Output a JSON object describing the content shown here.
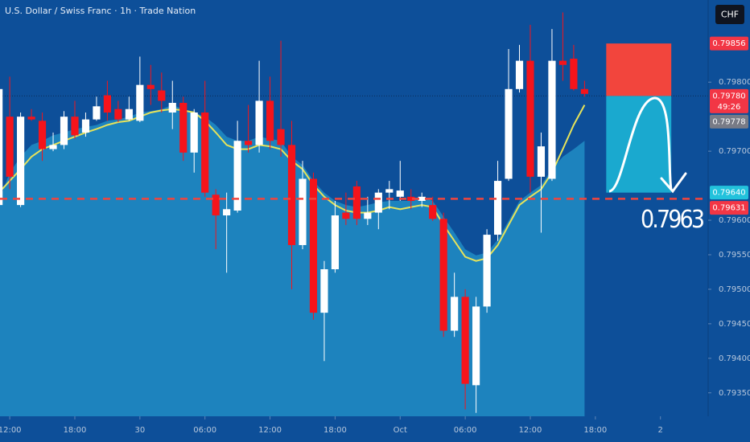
{
  "chart_data": {
    "type": "candlestick",
    "title": "U.S. Dollar / Swiss Franc · 1h · Trade Nation",
    "currency_button": "CHF",
    "x": [
      -1,
      0,
      1,
      2,
      3,
      4,
      5,
      6,
      7,
      8,
      9,
      10,
      11,
      12,
      13,
      14,
      15,
      16,
      17,
      18,
      19,
      20,
      21,
      22,
      23,
      24,
      25,
      26,
      27,
      28,
      29,
      30,
      31,
      32,
      33,
      34,
      35,
      36,
      37,
      38,
      39,
      40,
      41,
      42,
      43,
      44,
      45,
      46,
      47,
      48,
      49,
      50,
      51,
      52,
      53
    ],
    "open": [
      0.79622,
      0.7975,
      0.79622,
      0.7975,
      0.79744,
      0.79703,
      0.79709,
      0.7975,
      0.79727,
      0.79746,
      0.79781,
      0.79761,
      0.79746,
      0.79744,
      0.79796,
      0.79788,
      0.79756,
      0.7977,
      0.79698,
      0.79756,
      0.79637,
      0.79607,
      0.79614,
      0.79715,
      0.79709,
      0.79773,
      0.79732,
      0.79709,
      0.79564,
      0.7966,
      0.79466,
      0.79529,
      0.79611,
      0.79649,
      0.79602,
      0.79611,
      0.7964,
      0.79634,
      0.79634,
      0.79628,
      0.79622,
      0.79602,
      0.7944,
      0.79489,
      0.79361,
      0.79475,
      0.79579,
      0.7966,
      0.7979,
      0.79831,
      0.79663,
      0.7966,
      0.79831,
      0.79834,
      0.7979
    ],
    "high": [
      0.79808,
      0.79808,
      0.79756,
      0.79761,
      0.79756,
      0.79727,
      0.79758,
      0.79773,
      0.79756,
      0.79779,
      0.79802,
      0.79773,
      0.79779,
      0.79837,
      0.79825,
      0.79814,
      0.79802,
      0.79779,
      0.79761,
      0.79802,
      0.79645,
      0.7964,
      0.79744,
      0.79767,
      0.79831,
      0.79808,
      0.7986,
      0.79744,
      0.79686,
      0.79669,
      0.79541,
      0.79628,
      0.7964,
      0.79657,
      0.79634,
      0.79645,
      0.79657,
      0.79686,
      0.79645,
      0.7964,
      0.79634,
      0.79611,
      0.79524,
      0.795,
      0.79489,
      0.79587,
      0.79686,
      0.79848,
      0.79854,
      0.79883,
      0.79727,
      0.79877,
      0.79901,
      0.79854,
      0.79802
    ],
    "low": [
      0.79616,
      0.79645,
      0.79619,
      0.79744,
      0.79686,
      0.797,
      0.79703,
      0.79718,
      0.79721,
      0.79744,
      0.79744,
      0.79742,
      0.79744,
      0.79742,
      0.79767,
      0.79756,
      0.79732,
      0.79686,
      0.79669,
      0.79634,
      0.79558,
      0.79524,
      0.79611,
      0.79698,
      0.79698,
      0.79703,
      0.79692,
      0.795,
      0.79558,
      0.79456,
      0.79396,
      0.79524,
      0.79593,
      0.79593,
      0.79593,
      0.79587,
      0.79616,
      0.79628,
      0.79616,
      0.79619,
      0.79599,
      0.79431,
      0.79431,
      0.79326,
      0.79321,
      0.79466,
      0.7957,
      0.79657,
      0.79785,
      0.7964,
      0.79582,
      0.79657,
      0.79802,
      0.79788,
      0.79779
    ],
    "close": [
      0.7979,
      0.79663,
      0.7975,
      0.79746,
      0.79703,
      0.79709,
      0.7975,
      0.79723,
      0.79746,
      0.79765,
      0.79756,
      0.79746,
      0.79761,
      0.79796,
      0.7979,
      0.79773,
      0.7977,
      0.79698,
      0.79756,
      0.7964,
      0.79607,
      0.79616,
      0.79715,
      0.79709,
      0.79773,
      0.79715,
      0.79709,
      0.79564,
      0.7966,
      0.79466,
      0.79529,
      0.79607,
      0.79602,
      0.79602,
      0.79611,
      0.7964,
      0.79645,
      0.79643,
      0.79628,
      0.79634,
      0.79602,
      0.7944,
      0.79489,
      0.79363,
      0.79475,
      0.79579,
      0.79657,
      0.7979,
      0.79831,
      0.79663,
      0.79707,
      0.79831,
      0.79825,
      0.7979,
      0.79783
    ],
    "moving_average": {
      "color": "#e6e35a",
      "values": [
        0.7964,
        0.79657,
        0.79674,
        0.79692,
        0.79703,
        0.79709,
        0.79715,
        0.79721,
        0.79727,
        0.79732,
        0.79738,
        0.79742,
        0.79744,
        0.7975,
        0.79756,
        0.79759,
        0.79761,
        0.79759,
        0.79756,
        0.79744,
        0.79727,
        0.79709,
        0.79703,
        0.79703,
        0.79709,
        0.79707,
        0.79703,
        0.79686,
        0.79674,
        0.79651,
        0.79634,
        0.79622,
        0.79614,
        0.79611,
        0.79611,
        0.79614,
        0.79619,
        0.79616,
        0.79619,
        0.79622,
        0.79619,
        0.79593,
        0.7957,
        0.79547,
        0.79541,
        0.79545,
        0.79564,
        0.79593,
        0.79622,
        0.79634,
        0.79645,
        0.79669,
        0.79703,
        0.79738,
        0.79767
      ]
    },
    "cloud": {
      "color": "#1f88c2",
      "values": [
        0.79628,
        0.79669,
        0.79692,
        0.79709,
        0.79715,
        0.79723,
        0.79727,
        0.79732,
        0.79735,
        0.79738,
        0.79744,
        0.79746,
        0.7975,
        0.79756,
        0.79758,
        0.79761,
        0.79767,
        0.79761,
        0.79756,
        0.7975,
        0.79738,
        0.79721,
        0.79715,
        0.79715,
        0.79721,
        0.79718,
        0.79715,
        0.79692,
        0.7968,
        0.79657,
        0.7964,
        0.79628,
        0.79622,
        0.79619,
        0.79622,
        0.79626,
        0.79628,
        0.79628,
        0.79628,
        0.79634,
        0.79628,
        0.79605,
        0.79582,
        0.79558,
        0.79549,
        0.79553,
        0.79572,
        0.79599,
        0.79628,
        0.7964,
        0.79651,
        0.79674,
        0.79692,
        0.79703,
        0.79715
      ]
    },
    "up_color": "#ffffff",
    "down_color": "#f5141b",
    "xlim": [
      -0.9,
      64.4
    ],
    "ylim": [
      0.79316,
      0.79919
    ],
    "xticks": [
      {
        "value": 0,
        "label": "12:00"
      },
      {
        "value": 6,
        "label": "18:00"
      },
      {
        "value": 12,
        "label": "30"
      },
      {
        "value": 18,
        "label": "06:00"
      },
      {
        "value": 24,
        "label": "12:00"
      },
      {
        "value": 30,
        "label": "18:00"
      },
      {
        "value": 36,
        "label": "Oct"
      },
      {
        "value": 42,
        "label": "06:00"
      },
      {
        "value": 48,
        "label": "12:00"
      },
      {
        "value": 54,
        "label": "18:00"
      },
      {
        "value": 60,
        "label": "2"
      }
    ],
    "yticks": [
      {
        "value": 0.798,
        "label": "0.79800"
      },
      {
        "value": 0.797,
        "label": "0.79700"
      },
      {
        "value": 0.796,
        "label": "0.79600"
      },
      {
        "value": 0.7955,
        "label": "0.79550"
      },
      {
        "value": 0.795,
        "label": "0.79500"
      },
      {
        "value": 0.7945,
        "label": "0.79450"
      },
      {
        "value": 0.794,
        "label": "0.79400"
      },
      {
        "value": 0.7935,
        "label": "0.79350"
      }
    ],
    "grid": false,
    "price_tags": [
      {
        "value": 0.79856,
        "label": "0.79856",
        "color": "#f23645"
      },
      {
        "value": 0.7978,
        "label": "0.79780",
        "color": "#f23645",
        "countdown": "49:26"
      },
      {
        "value": 0.79778,
        "label": "0.79778",
        "color": "#787b86"
      },
      {
        "value": 0.7964,
        "label": "0.79640",
        "color": "#22c2dc"
      },
      {
        "value": 0.79631,
        "label": "0.79631",
        "color": "#f23645"
      }
    ],
    "position": {
      "x": [
        55,
        61
      ],
      "stop": 0.79856,
      "entry": 0.7978,
      "target": 0.7964,
      "stop_color": "#f2453d",
      "target_color": "#1aa9cf"
    },
    "annotation": {
      "text": "0.7963",
      "value": 0.79631
    }
  }
}
